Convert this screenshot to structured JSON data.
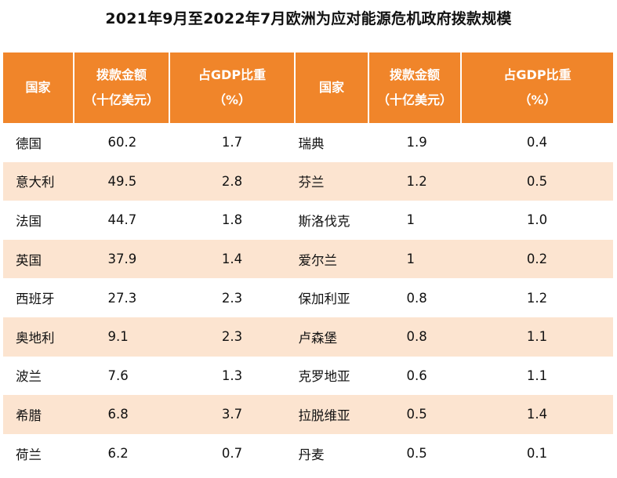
{
  "title": "2021年9月至2022年7月欧洲为应对能源危机政府拨款规模",
  "headers": [
    {
      "line1": "国家",
      "line2": ""
    },
    {
      "line1": "拨款金额",
      "line2": "（十亿美元）"
    },
    {
      "line1": "占GDP比重",
      "line2": "（%）"
    },
    {
      "line1": "国家",
      "line2": ""
    },
    {
      "line1": "拨款金额",
      "line2": "（十亿美元）"
    },
    {
      "line1": "占GDP比重",
      "line2": "（%）"
    }
  ],
  "rows": [
    {
      "c1": "德国",
      "a1": "60.2",
      "p1": "1.7",
      "c2": "瑞典",
      "a2": "1.9",
      "p2": "0.4"
    },
    {
      "c1": "意大利",
      "a1": "49.5",
      "p1": "2.8",
      "c2": "芬兰",
      "a2": "1.2",
      "p2": "0.5"
    },
    {
      "c1": "法国",
      "a1": "44.7",
      "p1": "1.8",
      "c2": "斯洛伐克",
      "a2": "1",
      "p2": "1.0"
    },
    {
      "c1": "英国",
      "a1": "37.9",
      "p1": "1.4",
      "c2": "爱尔兰",
      "a2": "1",
      "p2": "0.2"
    },
    {
      "c1": "西班牙",
      "a1": "27.3",
      "p1": "2.3",
      "c2": "保加利亚",
      "a2": "0.8",
      "p2": "1.2"
    },
    {
      "c1": "奥地利",
      "a1": "9.1",
      "p1": "2.3",
      "c2": "卢森堡",
      "a2": "0.8",
      "p2": "1.1"
    },
    {
      "c1": "波兰",
      "a1": "7.6",
      "p1": "1.3",
      "c2": "克罗地亚",
      "a2": "0.6",
      "p2": "1.1"
    },
    {
      "c1": "希腊",
      "a1": "6.8",
      "p1": "3.7",
      "c2": "拉脱维亚",
      "a2": "0.5",
      "p2": "1.4"
    },
    {
      "c1": "荷兰",
      "a1": "6.2",
      "p1": "0.7",
      "c2": "丹麦",
      "a2": "0.5",
      "p2": "0.1"
    }
  ],
  "colors": {
    "header_bg": "#f0852a",
    "stripe_bg": "#fce4d0",
    "header_text": "#ffffff"
  }
}
